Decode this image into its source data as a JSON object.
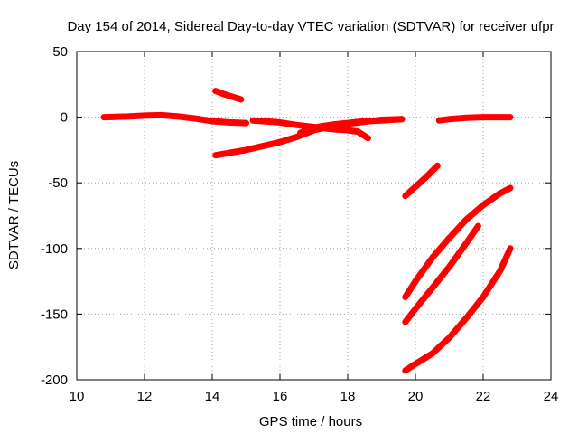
{
  "chart_data": {
    "type": "line",
    "title": "Day 154 of 2014, Sidereal Day-to-day VTEC variation (SDTVAR) for receiver ufpr",
    "xlabel": "GPS time / hours",
    "ylabel": "SDTVAR / TECUs",
    "xlim": [
      10,
      24
    ],
    "ylim": [
      -200,
      50
    ],
    "xticks": [
      10,
      12,
      14,
      16,
      18,
      20,
      22,
      24
    ],
    "yticks": [
      -200,
      -150,
      -100,
      -50,
      0,
      50
    ],
    "grid": true,
    "color": "#ff0000",
    "series": [
      {
        "points": [
          [
            10.8,
            0
          ],
          [
            11.5,
            0.5
          ],
          [
            12.0,
            1.2
          ],
          [
            12.5,
            1.5
          ],
          [
            13.0,
            0.5
          ],
          [
            13.5,
            -1
          ],
          [
            14.0,
            -3
          ],
          [
            14.5,
            -4
          ],
          [
            15.0,
            -4.5
          ]
        ]
      },
      {
        "points": [
          [
            14.1,
            20
          ],
          [
            14.3,
            18
          ],
          [
            14.6,
            15.5
          ],
          [
            14.85,
            13.5
          ]
        ]
      },
      {
        "points": [
          [
            14.1,
            -29
          ],
          [
            15.0,
            -25
          ],
          [
            16.0,
            -19
          ],
          [
            16.5,
            -15
          ],
          [
            17.0,
            -10
          ],
          [
            17.5,
            -7
          ],
          [
            18.0,
            -5
          ],
          [
            18.5,
            -3.5
          ],
          [
            19.0,
            -2
          ],
          [
            19.6,
            -1.5
          ]
        ]
      },
      {
        "points": [
          [
            15.2,
            -2.5
          ],
          [
            16.0,
            -4
          ],
          [
            16.5,
            -6
          ],
          [
            17.0,
            -7.5
          ],
          [
            17.5,
            -9
          ],
          [
            18.0,
            -10
          ],
          [
            18.3,
            -11
          ],
          [
            18.6,
            -16
          ]
        ]
      },
      {
        "points": [
          [
            16.6,
            -12
          ],
          [
            16.9,
            -9
          ],
          [
            17.2,
            -7
          ],
          [
            17.6,
            -5.5
          ],
          [
            18.0,
            -4.5
          ],
          [
            18.5,
            -3
          ],
          [
            19.0,
            -2.5
          ],
          [
            19.6,
            -1.5
          ]
        ]
      },
      {
        "points": [
          [
            20.7,
            -2.5
          ],
          [
            21.0,
            -1.5
          ],
          [
            21.5,
            -0.5
          ],
          [
            22.0,
            0
          ],
          [
            22.8,
            0
          ]
        ]
      },
      {
        "points": [
          [
            19.7,
            -60
          ],
          [
            20.0,
            -53
          ],
          [
            20.3,
            -46
          ],
          [
            20.65,
            -37
          ]
        ]
      },
      {
        "points": [
          [
            19.7,
            -137
          ],
          [
            20.0,
            -125
          ],
          [
            20.5,
            -107
          ],
          [
            21.0,
            -92
          ],
          [
            21.5,
            -78
          ],
          [
            22.0,
            -67
          ],
          [
            22.5,
            -58
          ],
          [
            22.8,
            -54
          ]
        ]
      },
      {
        "points": [
          [
            19.7,
            -156
          ],
          [
            20.0,
            -146
          ],
          [
            20.5,
            -130
          ],
          [
            21.0,
            -114
          ],
          [
            21.5,
            -96
          ],
          [
            21.85,
            -83
          ]
        ]
      },
      {
        "points": [
          [
            19.7,
            -193
          ],
          [
            20.0,
            -188
          ],
          [
            20.5,
            -180
          ],
          [
            21.0,
            -168
          ],
          [
            21.5,
            -153
          ],
          [
            22.0,
            -137
          ],
          [
            22.5,
            -117
          ],
          [
            22.8,
            -100
          ]
        ]
      }
    ]
  }
}
